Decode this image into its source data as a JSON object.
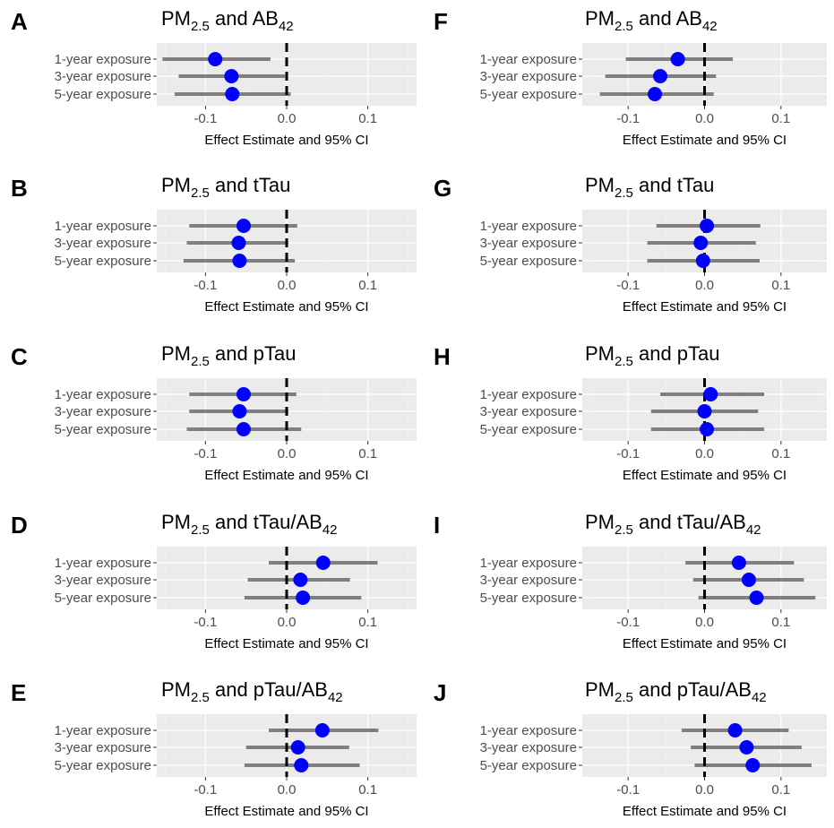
{
  "figure": {
    "x_axis_title": "Effect Estimate and 95% CI",
    "row_labels": [
      "1-year exposure",
      "3-year exposure",
      "5-year exposure"
    ],
    "x_ticks": [
      -0.1,
      0.0,
      0.1
    ],
    "x_tick_labels": [
      "-0.1",
      "0.0",
      "0.1"
    ]
  },
  "colors": {
    "point": "#0000ff",
    "ci_line": "#7f7f7f",
    "panel_bg": "#ebebeb",
    "grid_major": "#ffffff",
    "zero_line": "#000000"
  },
  "chart_data": [
    {
      "letter": "A",
      "title_main": "PM",
      "title_sub": "2.5",
      "title_rest": " and AB",
      "title_sub2": "42",
      "type": "forest",
      "xlim": [
        -0.16,
        0.16
      ],
      "x_zero_line": 0,
      "series": [
        {
          "label": "1-year exposure",
          "estimate": -0.088,
          "ci": [
            -0.153,
            -0.02
          ]
        },
        {
          "label": "3-year exposure",
          "estimate": -0.068,
          "ci": [
            -0.133,
            -0.002
          ]
        },
        {
          "label": "5-year exposure",
          "estimate": -0.067,
          "ci": [
            -0.138,
            0.005
          ]
        }
      ]
    },
    {
      "letter": "B",
      "title_main": "PM",
      "title_sub": "2.5",
      "title_rest": " and tTau",
      "title_sub2": "",
      "type": "forest",
      "xlim": [
        -0.16,
        0.16
      ],
      "x_zero_line": 0,
      "series": [
        {
          "label": "1-year exposure",
          "estimate": -0.053,
          "ci": [
            -0.12,
            0.013
          ]
        },
        {
          "label": "3-year exposure",
          "estimate": -0.059,
          "ci": [
            -0.123,
            0.002
          ]
        },
        {
          "label": "5-year exposure",
          "estimate": -0.058,
          "ci": [
            -0.127,
            0.01
          ]
        }
      ]
    },
    {
      "letter": "C",
      "title_main": "PM",
      "title_sub": "2.5",
      "title_rest": " and pTau",
      "title_sub2": "",
      "type": "forest",
      "xlim": [
        -0.16,
        0.16
      ],
      "x_zero_line": 0,
      "series": [
        {
          "label": "1-year exposure",
          "estimate": -0.053,
          "ci": [
            -0.12,
            0.012
          ]
        },
        {
          "label": "3-year exposure",
          "estimate": -0.058,
          "ci": [
            -0.12,
            0.002
          ]
        },
        {
          "label": "5-year exposure",
          "estimate": -0.053,
          "ci": [
            -0.123,
            0.018
          ]
        }
      ]
    },
    {
      "letter": "D",
      "title_main": "PM",
      "title_sub": "2.5",
      "title_rest": " and tTau/AB",
      "title_sub2": "42",
      "type": "forest",
      "xlim": [
        -0.16,
        0.16
      ],
      "x_zero_line": 0,
      "series": [
        {
          "label": "1-year exposure",
          "estimate": 0.045,
          "ci": [
            -0.022,
            0.112
          ]
        },
        {
          "label": "3-year exposure",
          "estimate": 0.017,
          "ci": [
            -0.048,
            0.078
          ]
        },
        {
          "label": "5-year exposure",
          "estimate": 0.02,
          "ci": [
            -0.052,
            0.092
          ]
        }
      ]
    },
    {
      "letter": "E",
      "title_main": "PM",
      "title_sub": "2.5",
      "title_rest": " and pTau/AB",
      "title_sub2": "42",
      "type": "forest",
      "xlim": [
        -0.16,
        0.16
      ],
      "x_zero_line": 0,
      "series": [
        {
          "label": "1-year exposure",
          "estimate": 0.044,
          "ci": [
            -0.022,
            0.113
          ]
        },
        {
          "label": "3-year exposure",
          "estimate": 0.014,
          "ci": [
            -0.05,
            0.077
          ]
        },
        {
          "label": "5-year exposure",
          "estimate": 0.018,
          "ci": [
            -0.052,
            0.09
          ]
        }
      ]
    },
    {
      "letter": "F",
      "title_main": "PM",
      "title_sub": "2.5",
      "title_rest": " and AB",
      "title_sub2": "42",
      "type": "forest",
      "xlim": [
        -0.16,
        0.16
      ],
      "x_zero_line": 0,
      "series": [
        {
          "label": "1-year exposure",
          "estimate": -0.035,
          "ci": [
            -0.103,
            0.037
          ]
        },
        {
          "label": "3-year exposure",
          "estimate": -0.058,
          "ci": [
            -0.13,
            0.015
          ]
        },
        {
          "label": "5-year exposure",
          "estimate": -0.065,
          "ci": [
            -0.137,
            0.012
          ]
        }
      ]
    },
    {
      "letter": "G",
      "title_main": "PM",
      "title_sub": "2.5",
      "title_rest": " and tTau",
      "title_sub2": "",
      "type": "forest",
      "xlim": [
        -0.16,
        0.16
      ],
      "x_zero_line": 0,
      "series": [
        {
          "label": "1-year exposure",
          "estimate": 0.003,
          "ci": [
            -0.063,
            0.073
          ]
        },
        {
          "label": "3-year exposure",
          "estimate": -0.005,
          "ci": [
            -0.075,
            0.067
          ]
        },
        {
          "label": "5-year exposure",
          "estimate": -0.002,
          "ci": [
            -0.075,
            0.072
          ]
        }
      ]
    },
    {
      "letter": "H",
      "title_main": "PM",
      "title_sub": "2.5",
      "title_rest": " and pTau",
      "title_sub2": "",
      "type": "forest",
      "xlim": [
        -0.16,
        0.16
      ],
      "x_zero_line": 0,
      "series": [
        {
          "label": "1-year exposure",
          "estimate": 0.008,
          "ci": [
            -0.058,
            0.078
          ]
        },
        {
          "label": "3-year exposure",
          "estimate": 0.0,
          "ci": [
            -0.07,
            0.07
          ]
        },
        {
          "label": "5-year exposure",
          "estimate": 0.003,
          "ci": [
            -0.07,
            0.078
          ]
        }
      ]
    },
    {
      "letter": "I",
      "title_main": "PM",
      "title_sub": "2.5",
      "title_rest": " and tTau/AB",
      "title_sub2": "42",
      "type": "forest",
      "xlim": [
        -0.16,
        0.16
      ],
      "x_zero_line": 0,
      "series": [
        {
          "label": "1-year exposure",
          "estimate": 0.045,
          "ci": [
            -0.025,
            0.117
          ]
        },
        {
          "label": "3-year exposure",
          "estimate": 0.058,
          "ci": [
            -0.015,
            0.13
          ]
        },
        {
          "label": "5-year exposure",
          "estimate": 0.068,
          "ci": [
            -0.008,
            0.145
          ]
        }
      ]
    },
    {
      "letter": "J",
      "title_main": "PM",
      "title_sub": "2.5",
      "title_rest": " and pTau/AB",
      "title_sub2": "42",
      "type": "forest",
      "xlim": [
        -0.16,
        0.16
      ],
      "x_zero_line": 0,
      "series": [
        {
          "label": "1-year exposure",
          "estimate": 0.04,
          "ci": [
            -0.03,
            0.11
          ]
        },
        {
          "label": "3-year exposure",
          "estimate": 0.055,
          "ci": [
            -0.018,
            0.127
          ]
        },
        {
          "label": "5-year exposure",
          "estimate": 0.063,
          "ci": [
            -0.013,
            0.14
          ]
        }
      ]
    }
  ]
}
